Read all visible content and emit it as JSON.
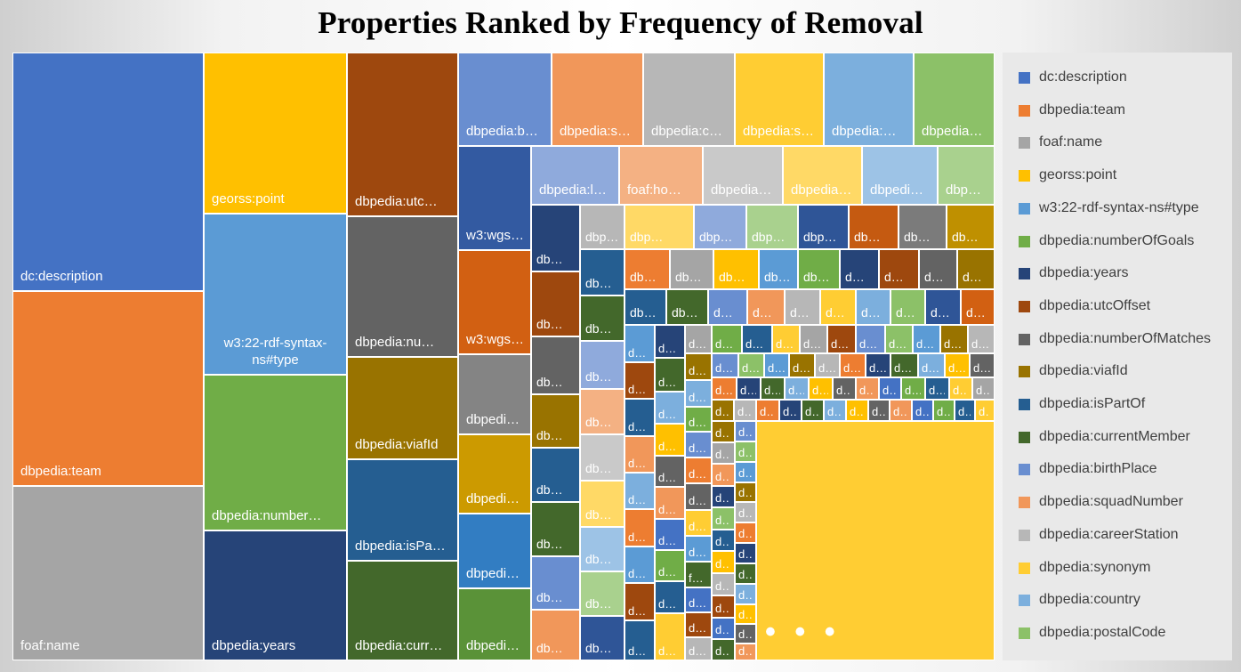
{
  "chart_data": {
    "type": "treemap",
    "title": "Properties Ranked by Frequency of Removal",
    "legend_position": "right",
    "legend": [
      {
        "name": "dc:description",
        "color": "#4472C4"
      },
      {
        "name": "dbpedia:team",
        "color": "#ED7D31"
      },
      {
        "name": "foaf:name",
        "color": "#A5A5A5"
      },
      {
        "name": "georss:point",
        "color": "#FFC000"
      },
      {
        "name": "w3:22-rdf-syntax-ns#type",
        "color": "#5B9BD5"
      },
      {
        "name": "dbpedia:numberOfGoals",
        "color": "#70AD47"
      },
      {
        "name": "dbpedia:years",
        "color": "#264478"
      },
      {
        "name": "dbpedia:utcOffset",
        "color": "#9E480E"
      },
      {
        "name": "dbpedia:numberOfMatches",
        "color": "#636363"
      },
      {
        "name": "dbpedia:viafId",
        "color": "#997300"
      },
      {
        "name": "dbpedia:isPartOf",
        "color": "#255E91"
      },
      {
        "name": "dbpedia:currentMember",
        "color": "#43682B"
      },
      {
        "name": "dbpedia:birthPlace",
        "color": "#698ED0"
      },
      {
        "name": "dbpedia:squadNumber",
        "color": "#F1975A"
      },
      {
        "name": "dbpedia:careerStation",
        "color": "#B7B7B7"
      },
      {
        "name": "dbpedia:synonym",
        "color": "#FFCD33"
      },
      {
        "name": "dbpedia:country",
        "color": "#7CAFDD"
      },
      {
        "name": "dbpedia:postalCode",
        "color": "#8CC168"
      }
    ],
    "tiles": [
      {
        "label": "dc:description",
        "color": "#4472C4"
      },
      {
        "label": "dbpedia:team",
        "color": "#ED7D31"
      },
      {
        "label": "foaf:name",
        "color": "#A5A5A5"
      },
      {
        "label": "georss:point",
        "color": "#FFC000"
      },
      {
        "label": "w3:22-rdf-syntax-ns#type",
        "color": "#5B9BD5"
      },
      {
        "label": "dbpedia:number…",
        "color": "#70AD47"
      },
      {
        "label": "dbpedia:years",
        "color": "#264478"
      },
      {
        "label": "dbpedia:utc…",
        "color": "#9E480E"
      },
      {
        "label": "dbpedia:nu…",
        "color": "#636363"
      },
      {
        "label": "dbpedia:viafId",
        "color": "#997300"
      },
      {
        "label": "dbpedia:isPa…",
        "color": "#255E91"
      },
      {
        "label": "dbpedia:curr…",
        "color": "#43682B"
      },
      {
        "label": "dbpedia:b…",
        "color": "#698ED0"
      },
      {
        "label": "dbpedia:s…",
        "color": "#F1975A"
      },
      {
        "label": "dbpedia:c…",
        "color": "#B7B7B7"
      },
      {
        "label": "dbpedia:s…",
        "color": "#FFCD33"
      },
      {
        "label": "dbpedia:…",
        "color": "#7CAFDD"
      },
      {
        "label": "dbpedia…",
        "color": "#8CC168"
      },
      {
        "label": "w3:wgs…",
        "color": "#335AA1"
      },
      {
        "label": "w3:wgs…",
        "color": "#D26012"
      },
      {
        "label": "dbpedi…",
        "color": "#848484"
      },
      {
        "label": "dbpedi…",
        "color": "#CC9A00"
      },
      {
        "label": "dbpedi…",
        "color": "#327DC2"
      },
      {
        "label": "dbpedi…",
        "color": "#5A9238"
      },
      {
        "label": "dbpedia:l…",
        "color": "#8FAADC"
      },
      {
        "label": "foaf:ho…",
        "color": "#F4B183"
      },
      {
        "label": "dbpedia…",
        "color": "#C9C9C9"
      },
      {
        "label": "dbpedia…",
        "color": "#FFD966"
      },
      {
        "label": "dbpedi…",
        "color": "#9DC3E6"
      },
      {
        "label": "dbp…",
        "color": "#A9D18E"
      }
    ],
    "more_indicator": "• • •"
  }
}
